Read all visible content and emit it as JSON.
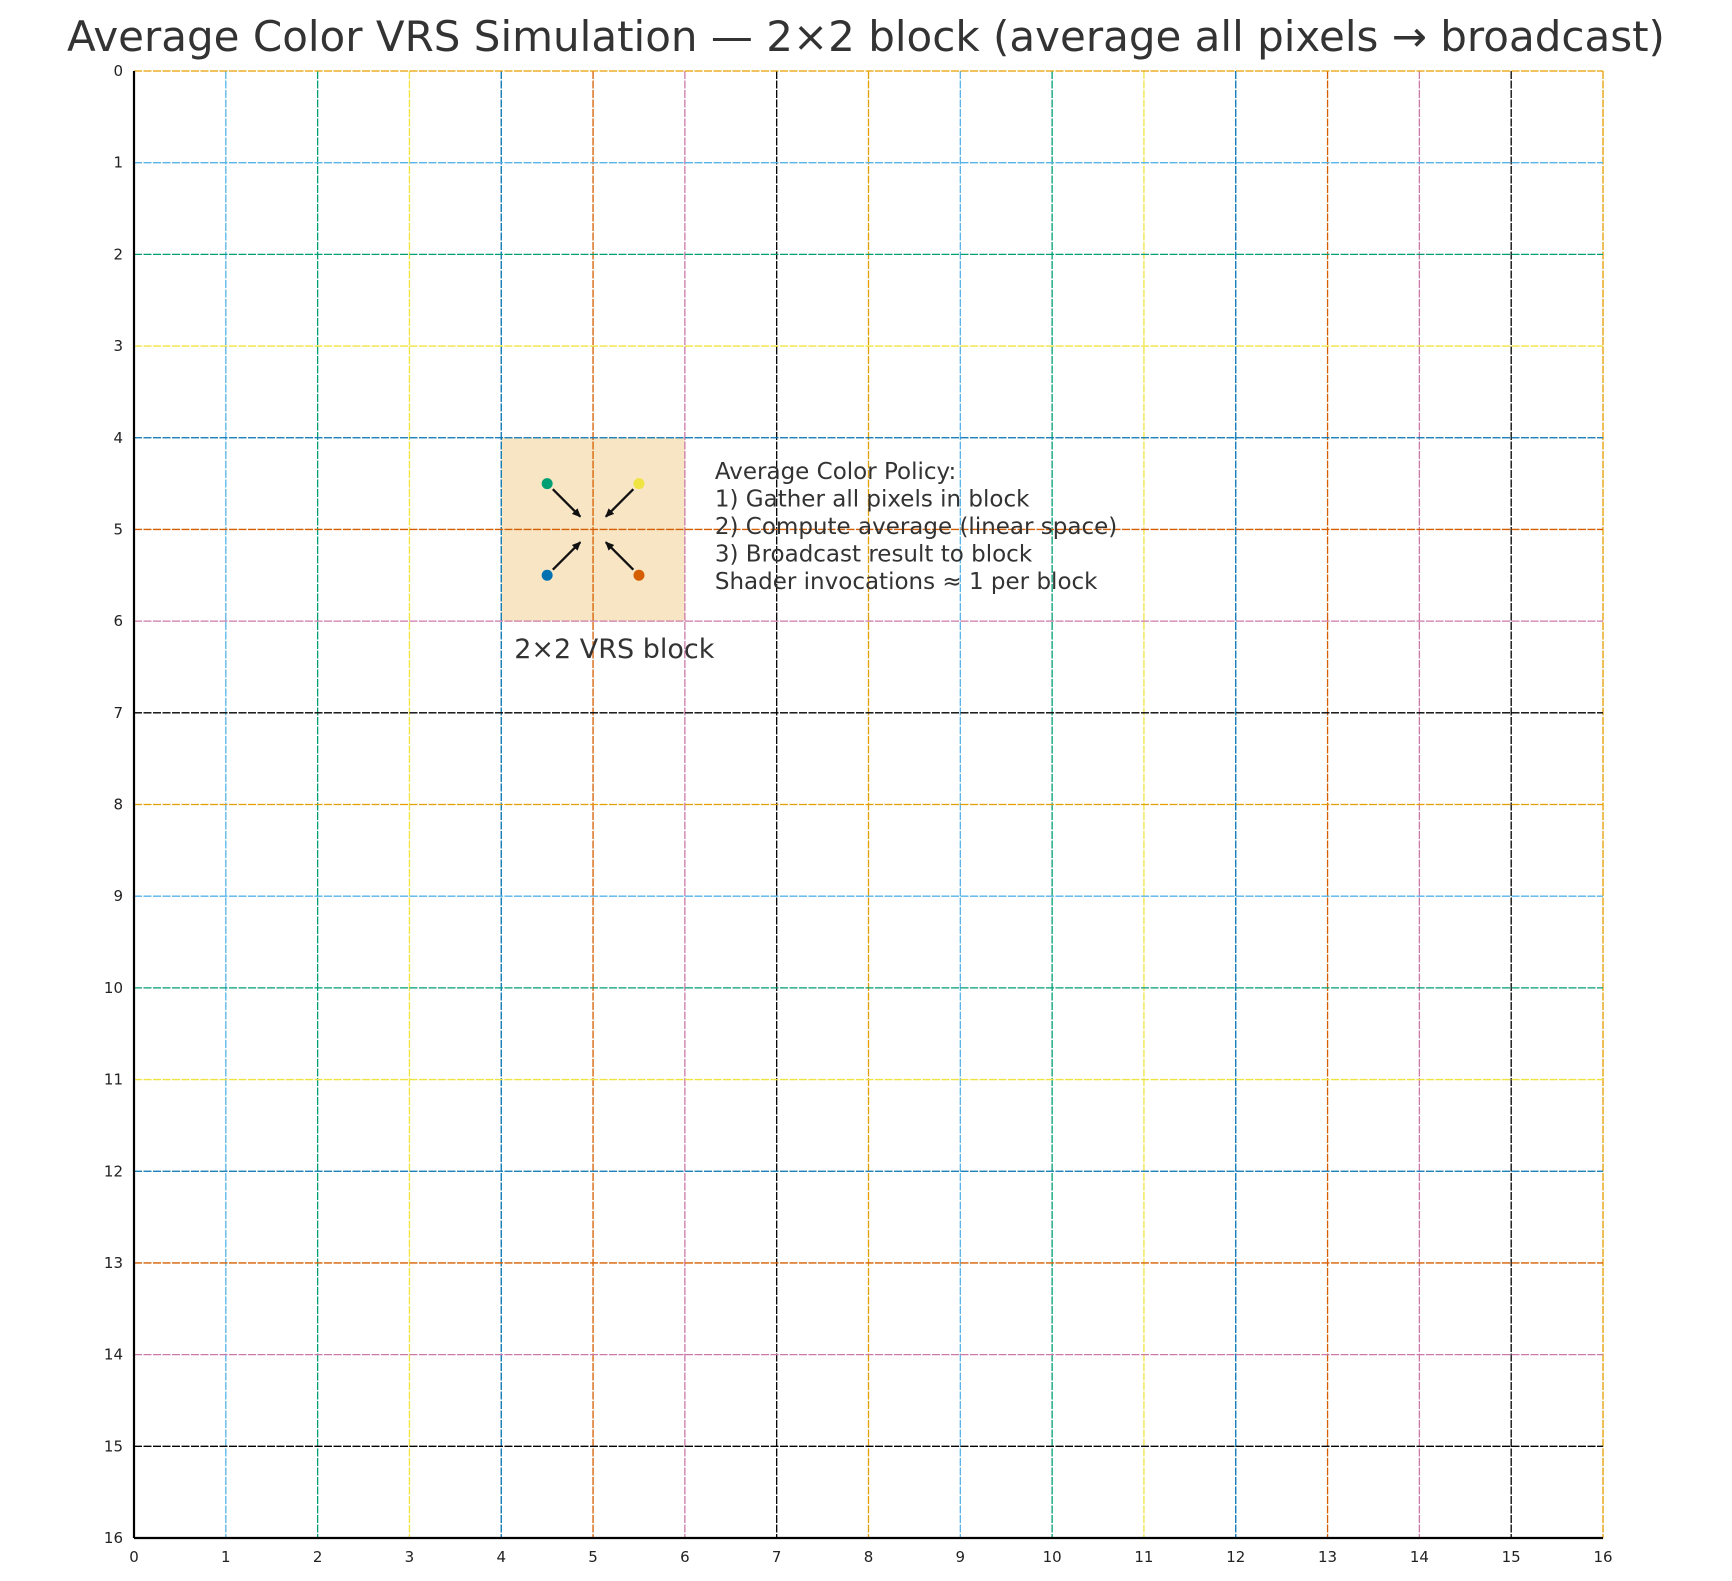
{
  "title": "Average Color VRS Simulation — 2×2 block (average all pixels → broadcast)",
  "grid": {
    "x_range": [
      0,
      16
    ],
    "y_range": [
      0,
      16
    ],
    "y_inverted": true,
    "x_ticks": [
      0,
      1,
      2,
      3,
      4,
      5,
      6,
      7,
      8,
      9,
      10,
      11,
      12,
      13,
      14,
      15,
      16
    ],
    "y_ticks": [
      0,
      1,
      2,
      3,
      4,
      5,
      6,
      7,
      8,
      9,
      10,
      11,
      12,
      13,
      14,
      15,
      16
    ],
    "line_colors": [
      "#56b4e9",
      "#009e73",
      "#f0e442",
      "#0072b2",
      "#d55e00",
      "#cc79a7",
      "#000000",
      "#e69f00"
    ],
    "first_color_index": 7
  },
  "block": {
    "label": "2×2 VRS block",
    "x_range": [
      4,
      6
    ],
    "y_range": [
      4,
      6
    ],
    "fill": "#f8e5c4",
    "center": [
      5,
      5
    ],
    "samples": [
      {
        "x": 4.5,
        "y": 4.5,
        "color": "#009e73"
      },
      {
        "x": 5.5,
        "y": 4.5,
        "color": "#f0e442"
      },
      {
        "x": 4.5,
        "y": 5.5,
        "color": "#0072b2"
      },
      {
        "x": 5.5,
        "y": 5.5,
        "color": "#d55e00"
      }
    ]
  },
  "policy": {
    "lines": [
      "Average Color Policy:",
      "1) Gather all pixels in block",
      "2) Compute average (linear space)",
      "3) Broadcast result to block",
      "Shader invocations ≈ 1 per block"
    ]
  }
}
